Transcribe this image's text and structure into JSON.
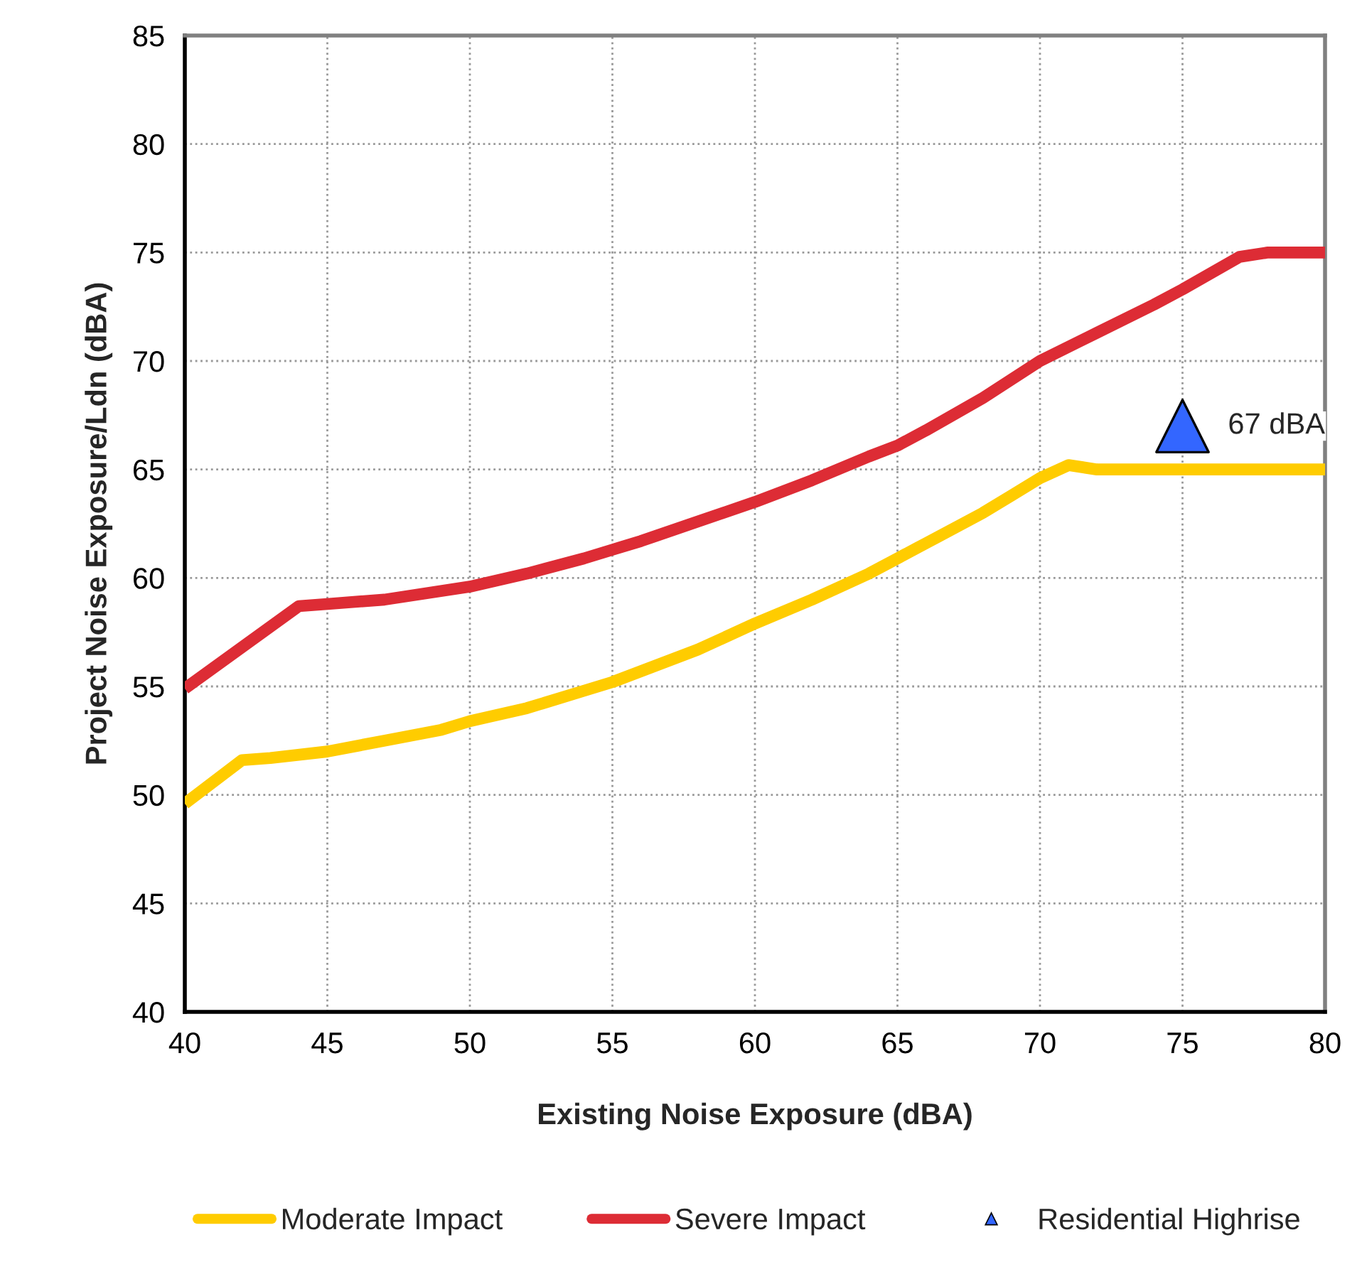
{
  "chart_data": {
    "type": "line",
    "xlabel": "Existing Noise Exposure (dBA)",
    "ylabel": "Project Noise Exposure/Ldn (dBA)",
    "xlim": [
      40,
      80
    ],
    "xticks": [
      40,
      45,
      50,
      55,
      60,
      65,
      70,
      75,
      80
    ],
    "ylim": [
      40,
      85
    ],
    "yticks": [
      40,
      45,
      50,
      55,
      60,
      65,
      70,
      75,
      80,
      85
    ],
    "grid": true,
    "legend": "bottom",
    "series": [
      {
        "name": "Moderate Impact",
        "color": "#ffcc00",
        "marker": "none",
        "x": [
          40,
          42,
          43,
          45,
          47,
          49,
          50,
          52,
          54,
          55,
          56,
          58,
          60,
          62,
          64,
          65,
          66,
          68,
          69,
          70,
          71,
          72,
          80
        ],
        "values": [
          49.6,
          51.6,
          51.7,
          52.0,
          52.5,
          53.0,
          53.4,
          54.0,
          54.8,
          55.2,
          55.7,
          56.7,
          57.9,
          59.0,
          60.2,
          60.9,
          61.6,
          63.0,
          63.8,
          64.6,
          65.2,
          65.0,
          65.0
        ]
      },
      {
        "name": "Severe Impact",
        "color": "#dd2c35",
        "marker": "none",
        "x": [
          40,
          42,
          44,
          45,
          47,
          50,
          52,
          54,
          55,
          56,
          58,
          60,
          62,
          64,
          65,
          66,
          68,
          70,
          72,
          74,
          75,
          77,
          78,
          80
        ],
        "values": [
          54.9,
          56.8,
          58.7,
          58.8,
          59.0,
          59.6,
          60.2,
          60.9,
          61.3,
          61.7,
          62.6,
          63.5,
          64.5,
          65.6,
          66.1,
          66.8,
          68.3,
          70.0,
          71.3,
          72.6,
          73.3,
          74.8,
          75.0,
          75.0
        ]
      },
      {
        "name": "Residential Highrise",
        "type": "scatter",
        "color": "#3366ff",
        "marker": "triangle",
        "x": [
          75
        ],
        "values": [
          67
        ]
      }
    ],
    "annotations": [
      {
        "text": "67 dBA",
        "x": 75,
        "y": 67
      }
    ]
  }
}
